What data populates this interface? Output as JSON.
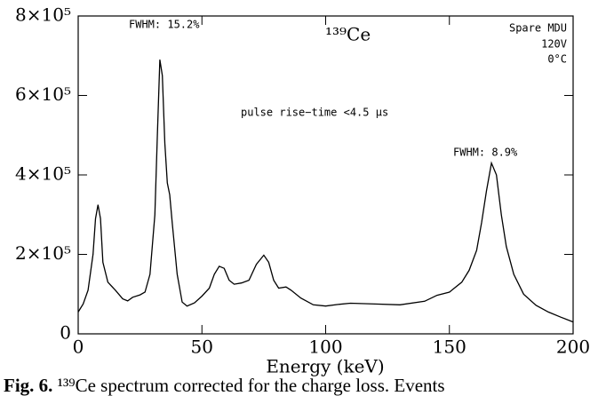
{
  "chart_data": {
    "type": "line",
    "annotations": [
      "FWHM: 15.2%",
      "¹³⁹Ce",
      "Spare MDU",
      "120V",
      "0°C",
      "pulse rise−time <4.5 μs",
      "FWHM: 8.9%"
    ],
    "x_label": "Energy (keV)",
    "x": [
      0,
      2,
      4,
      6,
      7,
      8,
      9,
      10,
      12,
      15,
      18,
      20,
      22,
      25,
      27,
      29,
      31,
      32,
      33,
      34,
      35,
      36,
      37,
      38,
      40,
      42,
      44,
      47,
      50,
      53,
      55,
      57,
      59,
      61,
      63,
      66,
      69,
      72,
      75,
      77,
      79,
      81,
      84,
      86,
      90,
      95,
      100,
      105,
      110,
      120,
      130,
      140,
      145,
      150,
      155,
      158,
      161,
      163,
      165,
      167,
      169,
      171,
      173,
      176,
      180,
      185,
      190,
      195,
      200
    ],
    "series": [
      {
        "color": "#000000",
        "values": [
          55000,
          75000,
          110000,
          200000,
          290000,
          325000,
          290000,
          180000,
          130000,
          110000,
          88000,
          83000,
          92000,
          98000,
          105000,
          150000,
          300000,
          500000,
          690000,
          650000,
          480000,
          380000,
          350000,
          280000,
          150000,
          80000,
          70000,
          78000,
          95000,
          115000,
          150000,
          170000,
          165000,
          135000,
          125000,
          128000,
          135000,
          175000,
          198000,
          180000,
          135000,
          115000,
          118000,
          110000,
          90000,
          73000,
          70000,
          74000,
          77000,
          75000,
          73000,
          82000,
          97000,
          105000,
          130000,
          160000,
          210000,
          280000,
          360000,
          430000,
          400000,
          300000,
          220000,
          150000,
          100000,
          72000,
          55000,
          42000,
          30000
        ]
      }
    ],
    "xlim": [
      0,
      200
    ],
    "xticks": [
      0,
      50,
      100,
      150,
      200
    ],
    "ylim": [
      0,
      800000
    ],
    "yticks": [
      0,
      {
        "value": 200000,
        "label": "2×10⁵"
      },
      {
        "value": 400000,
        "label": "4×10⁵"
      },
      {
        "value": 600000,
        "label": "6×10⁵"
      },
      {
        "value": 800000,
        "label": "8×10⁵"
      }
    ]
  },
  "caption": {
    "label": "Fig. 6.",
    "text": "¹³⁹Ce spectrum corrected for the charge loss. Events"
  }
}
